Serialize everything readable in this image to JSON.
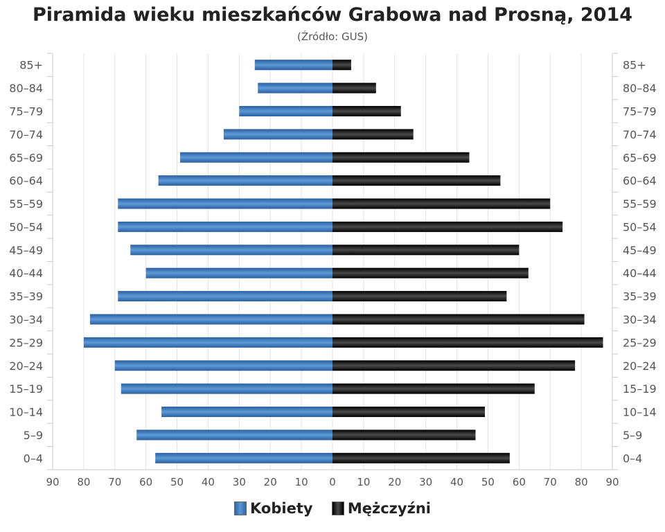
{
  "chart_data": {
    "type": "bar",
    "orientation": "horizontal",
    "title": "Piramida wieku mieszkańców Grabowa nad Prosną, 2014",
    "subtitle": "(Źródło: GUS)",
    "categories": [
      "85+",
      "80–84",
      "75–79",
      "70–74",
      "65–69",
      "60–64",
      "55–59",
      "50–54",
      "45–49",
      "40–44",
      "35–39",
      "30–34",
      "25–29",
      "20–24",
      "15–19",
      "10–14",
      "5–9",
      "0–4"
    ],
    "series": [
      {
        "name": "Kobiety",
        "color": "#3a78bf",
        "values": [
          25,
          24,
          30,
          35,
          49,
          56,
          69,
          69,
          65,
          60,
          69,
          78,
          80,
          70,
          68,
          55,
          63,
          57
        ]
      },
      {
        "name": "Mężczyźni",
        "color": "#111111",
        "values": [
          6,
          14,
          22,
          26,
          44,
          54,
          70,
          74,
          60,
          63,
          56,
          81,
          87,
          78,
          65,
          49,
          46,
          57
        ]
      }
    ],
    "x_ticks": [
      "90",
      "80",
      "70",
      "60",
      "50",
      "40",
      "30",
      "20",
      "10",
      "0",
      "10",
      "20",
      "30",
      "40",
      "50",
      "60",
      "70",
      "80",
      "90"
    ],
    "xlim": [
      -90,
      90
    ],
    "grid": true,
    "legend_position": "bottom"
  }
}
